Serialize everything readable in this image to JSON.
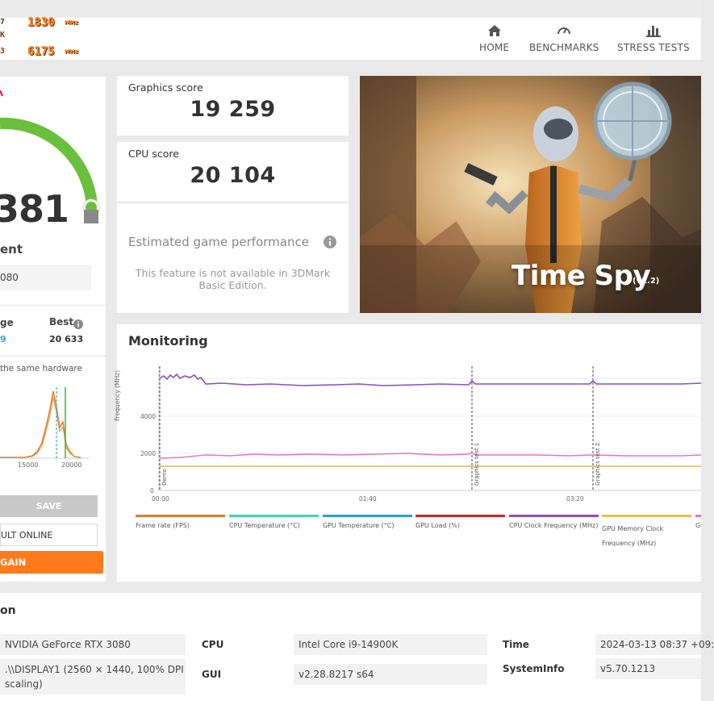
{
  "osd": {
    "core_clock": "1830",
    "core_unit": "MHz",
    "mem_clock": "6175",
    "mem_unit": "MHz"
  },
  "nav": {
    "home": "HOME",
    "benchmarks": "BENCHMARKS",
    "stress_tests": "STRESS TESTS"
  },
  "summary": {
    "score_partial": "381",
    "rating_partial": "ent",
    "gpu_partial": "080",
    "avg_label_partial": "ge",
    "avg_value_partial": "9",
    "best_label": "Best",
    "best_value": "20 633",
    "same_hw_partial": "the same hardware",
    "gauge_color": "#6abf3c",
    "save_label": "SAVE",
    "online_label_partial": "ULT ONLINE",
    "again_label_partial": "GAIN"
  },
  "dist_chart": {
    "tick_1": "15000",
    "tick_2": "20000"
  },
  "scores": {
    "graphics_label": "Graphics score",
    "graphics_value": "19 259",
    "cpu_label": "CPU score",
    "cpu_value": "20 104"
  },
  "estimated": {
    "title": "Estimated game performance",
    "message": "This feature is not available in 3DMark Basic Edition."
  },
  "hero": {
    "title": "Time Spy",
    "version": "(v1.2)"
  },
  "monitoring": {
    "title": "Monitoring",
    "y_axis_label": "Frequency (MHz)",
    "y_ticks": [
      "0",
      "2000",
      "4000"
    ],
    "x_ticks": [
      "00:00",
      "01:40",
      "03:20"
    ],
    "markers": [
      "Demo",
      "Graphics test 1",
      "Graphics test 2"
    ],
    "legend": [
      {
        "label": "Frame rate (FPS)",
        "color": "#e8772e"
      },
      {
        "label": "CPU Temperature (°C)",
        "color": "#3fd6c0"
      },
      {
        "label": "GPU Temperature (°C)",
        "color": "#2a9fdc"
      },
      {
        "label": "GPU Load (%)",
        "color": "#c8282e"
      },
      {
        "label": "CPU Clock Frequency (MHz)",
        "color": "#8a4fc4"
      },
      {
        "label": "GPU Memory Clock Frequency (MHz)",
        "color": "#e2c24a"
      },
      {
        "label": "G",
        "color": "#e879b4"
      }
    ]
  },
  "system": {
    "header_partial": "on",
    "gpu_value": "NVIDIA GeForce RTX 3080",
    "display_value": ".\\\\DISPLAY1 (2560 × 1440, 100% DPI",
    "display_value_2": "scaling)",
    "cpu_label": "CPU",
    "cpu_value": "Intel Core i9-14900K",
    "gui_label": "GUI",
    "gui_value": "v2.28.8217 s64",
    "time_label": "Time",
    "time_value": "2024-03-13 08:37 +09:",
    "sysinfo_label": "SystemInfo",
    "sysinfo_value": "v5.70.1213"
  }
}
